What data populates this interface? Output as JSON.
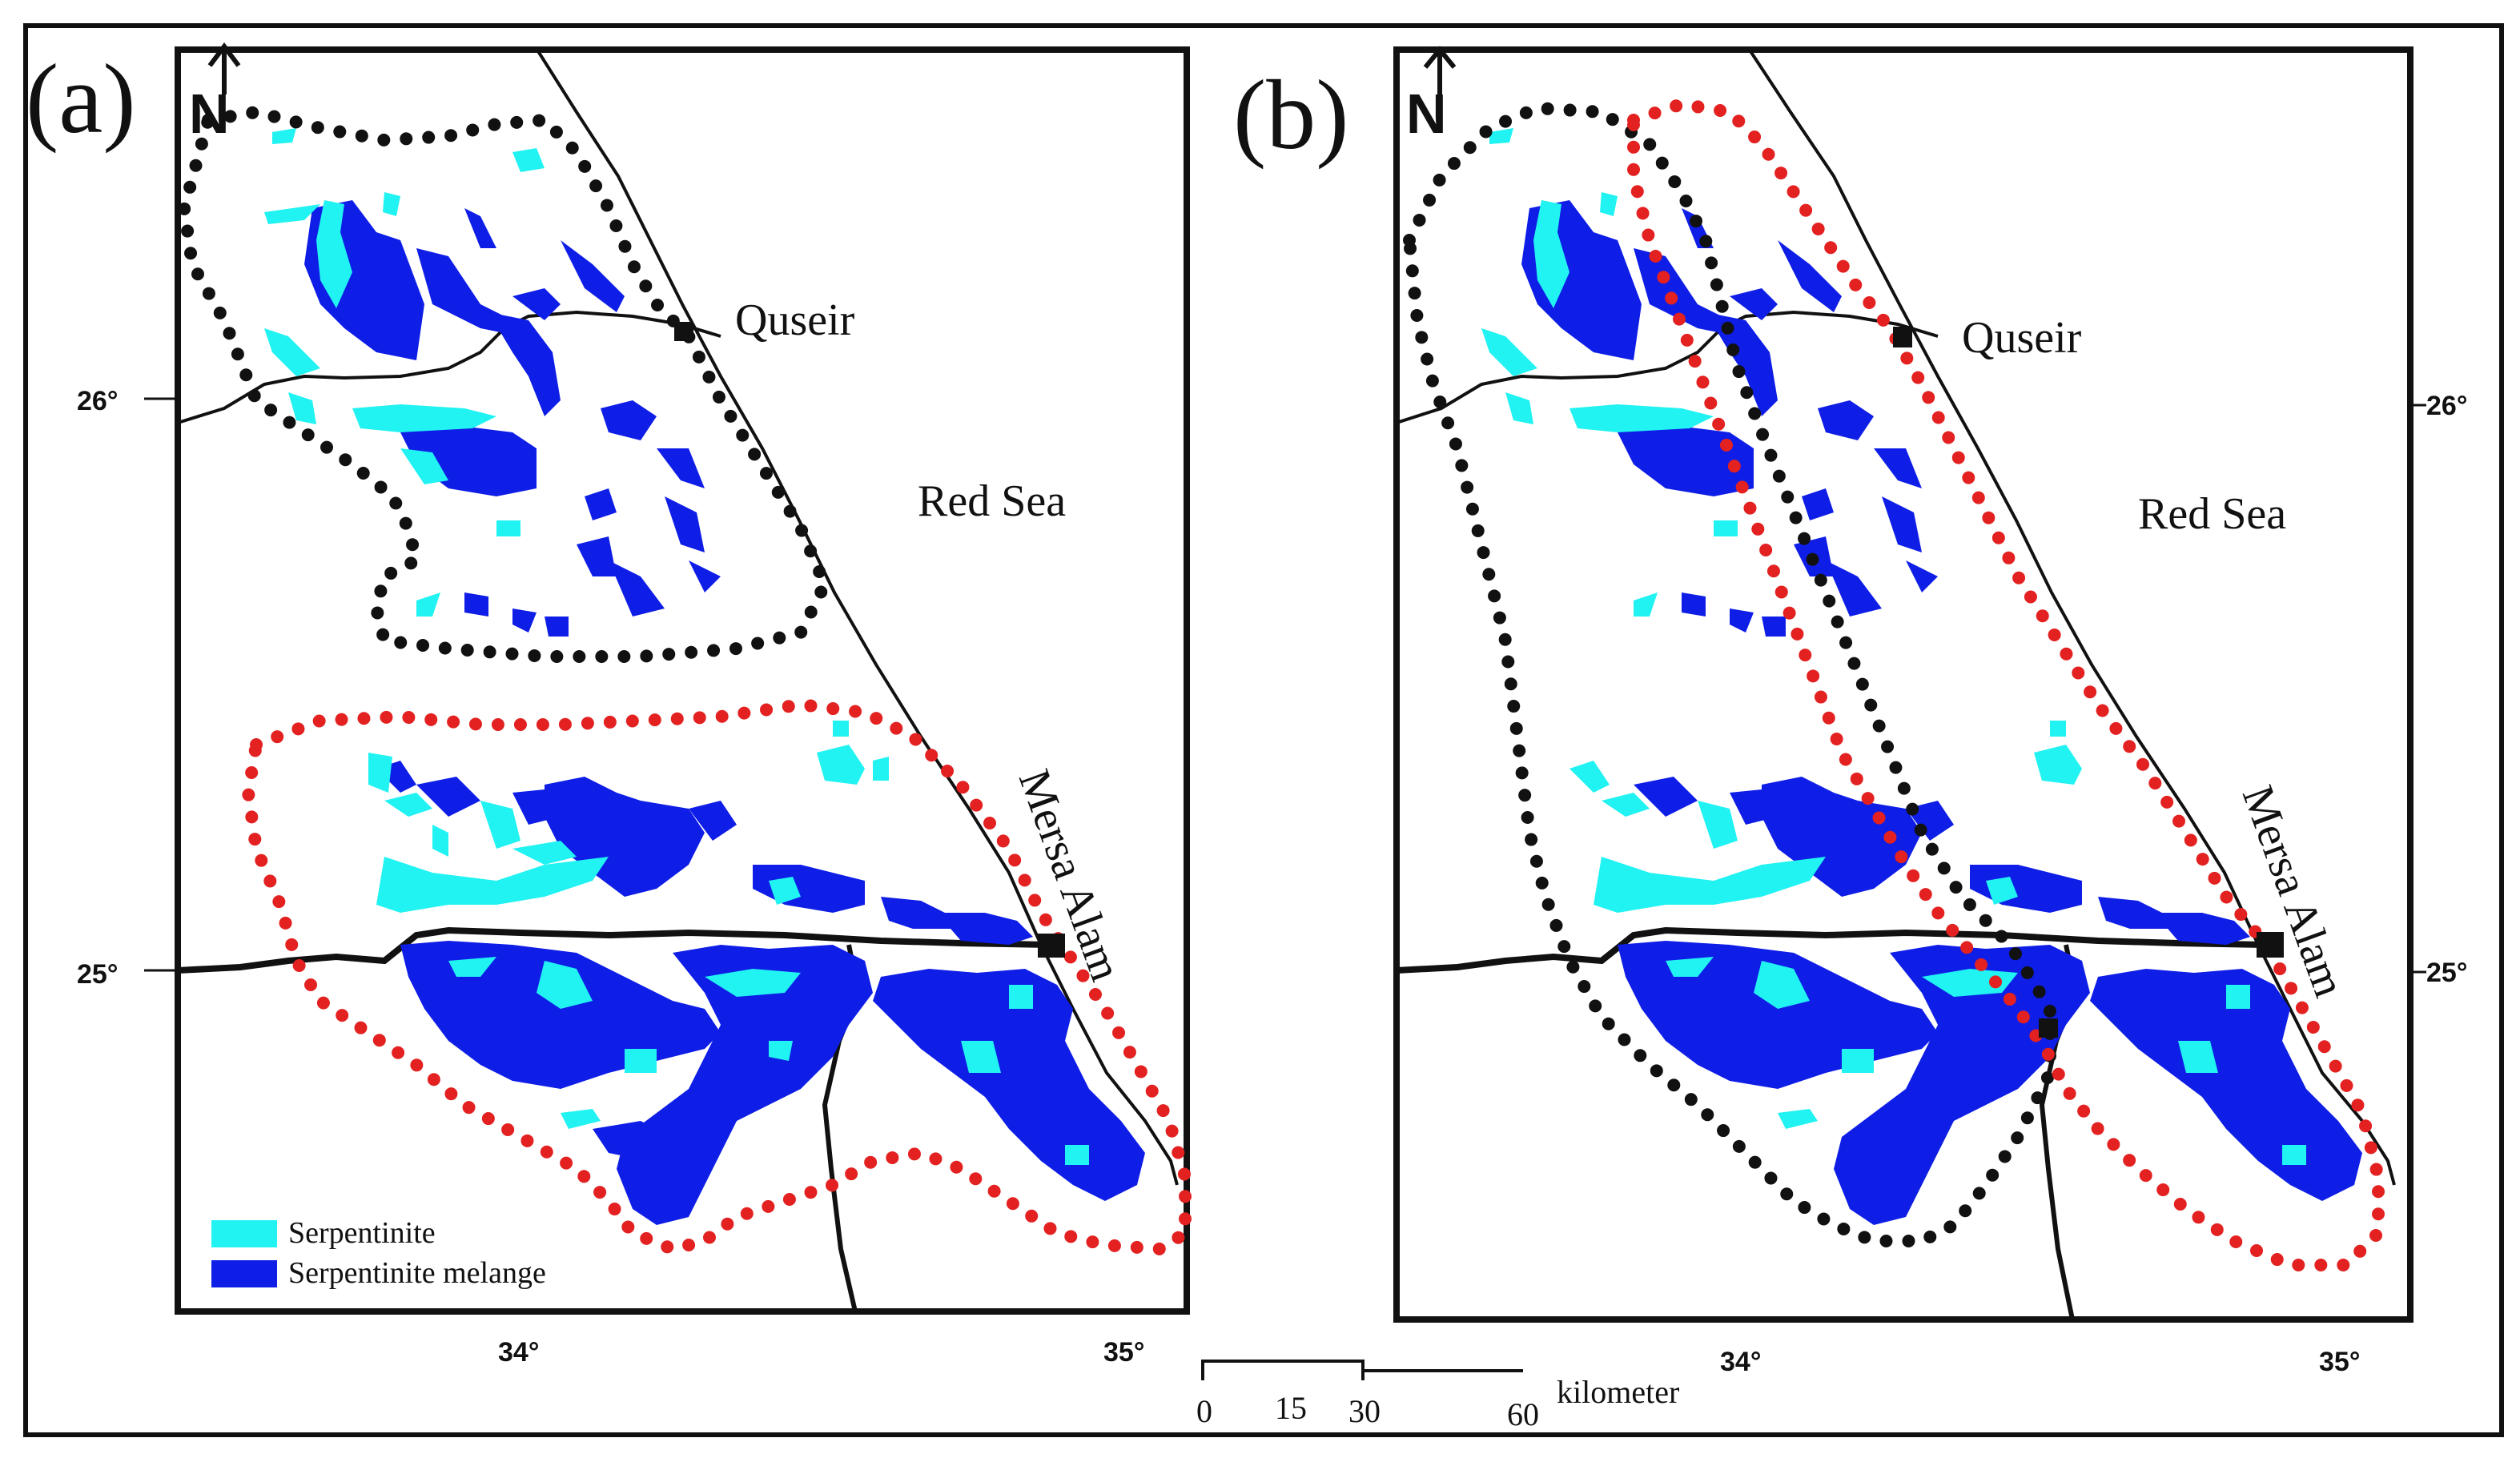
{
  "panels": [
    {
      "id": "a",
      "letter": "(a)",
      "north": "N",
      "places": {
        "city1": "Quseir",
        "sea": "Red Sea",
        "city2": "Mersa Alam"
      },
      "lat_ticks": [
        "26°",
        "25°"
      ],
      "lon_ticks": [
        "34°",
        "35°"
      ]
    },
    {
      "id": "b",
      "letter": "(b)",
      "north": "N",
      "places": {
        "city1": "Quseir",
        "sea": "Red Sea",
        "city2": "Mersa Alam"
      },
      "lat_ticks": [
        "26°",
        "25°"
      ],
      "lon_ticks": [
        "34°",
        "35°"
      ]
    }
  ],
  "legend": {
    "items": [
      {
        "label": "Serpentinite",
        "color": "#21f2f2"
      },
      {
        "label": "Serpentinite melange",
        "color": "#0f1ee6"
      }
    ]
  },
  "scale_bar": {
    "ticks": [
      "0",
      "15",
      "30",
      "60"
    ],
    "unit": "kilometer"
  },
  "colors": {
    "serpentinite": "#21f2f2",
    "melange": "#0f1ee6",
    "outline_black": "#111111",
    "outline_red": "#e32121",
    "frame": "#111111"
  }
}
